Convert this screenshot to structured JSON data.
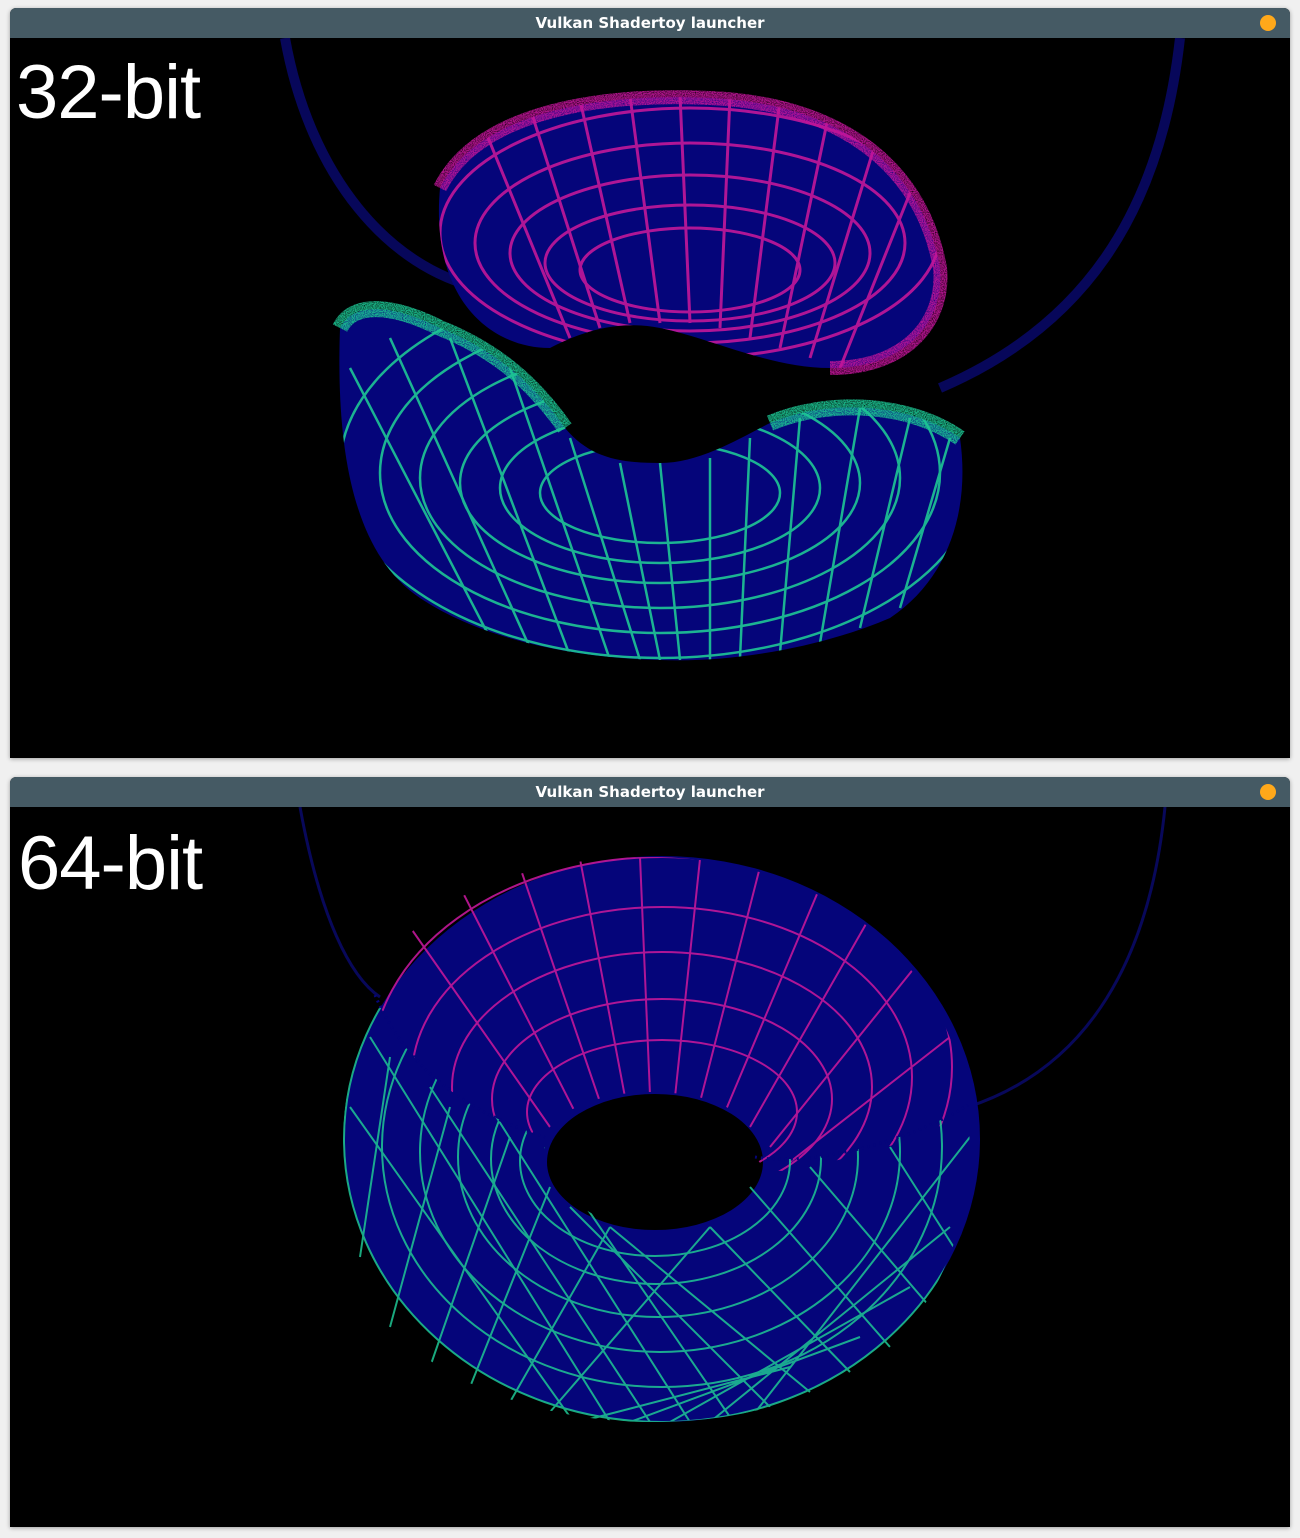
{
  "windows": [
    {
      "title": "Vulkan Shadertoy launcher",
      "label": "32-bit"
    },
    {
      "title": "Vulkan Shadertoy launcher",
      "label": "64-bit"
    }
  ],
  "colors": {
    "titlebar": "#455a64",
    "title_dot": "#ffa81a",
    "torus_fill": "#05057a",
    "torus_top_lines": "#c2189a",
    "torus_bottom_lines": "#1fc795",
    "background": "#000000"
  },
  "icons": {
    "window_status": "orange-dot-icon"
  }
}
